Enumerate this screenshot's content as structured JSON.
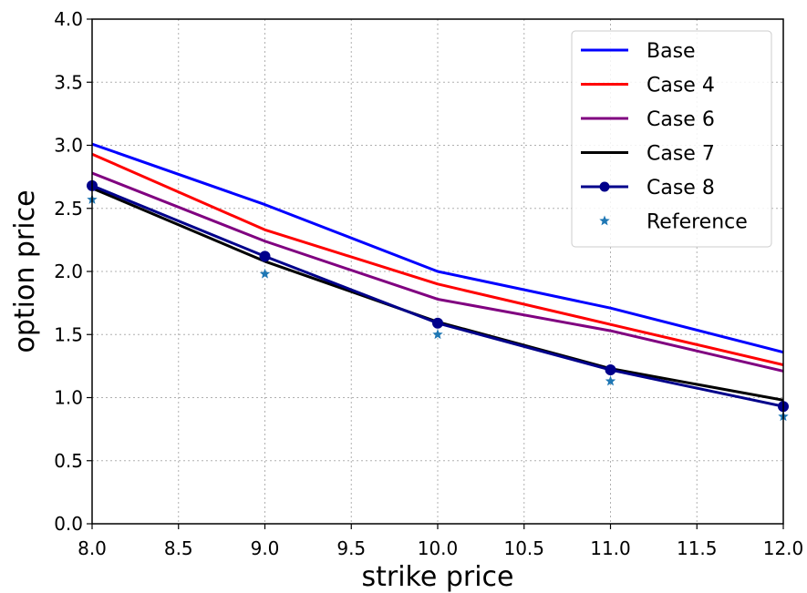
{
  "chart_data": {
    "type": "line",
    "xlabel": "strike price",
    "ylabel": "option price",
    "xlim": [
      8.0,
      12.0
    ],
    "ylim": [
      0.0,
      4.0
    ],
    "xticks": [
      "8.0",
      "8.5",
      "9.0",
      "9.5",
      "10.0",
      "10.5",
      "11.0",
      "11.5",
      "12.0"
    ],
    "yticks": [
      "0.0",
      "0.5",
      "1.0",
      "1.5",
      "2.0",
      "2.5",
      "3.0",
      "3.5",
      "4.0"
    ],
    "grid": true,
    "legend_position": "top-right",
    "x": [
      8,
      9,
      10,
      11,
      12
    ],
    "series": [
      {
        "name": "Base",
        "color": "#0000ff",
        "style": "line",
        "values": [
          3.01,
          2.53,
          2.0,
          1.71,
          1.36
        ]
      },
      {
        "name": "Case 4",
        "color": "#ff0000",
        "style": "line",
        "values": [
          2.93,
          2.33,
          1.9,
          1.58,
          1.26
        ]
      },
      {
        "name": "Case 6",
        "color": "#800080",
        "style": "line",
        "values": [
          2.78,
          2.24,
          1.78,
          1.53,
          1.21
        ]
      },
      {
        "name": "Case 7",
        "color": "#000000",
        "style": "line",
        "values": [
          2.66,
          2.08,
          1.6,
          1.23,
          0.98
        ]
      },
      {
        "name": "Case 8",
        "color": "#00008b",
        "style": "line-marker",
        "values": [
          2.68,
          2.12,
          1.59,
          1.22,
          0.93
        ]
      },
      {
        "name": "Reference",
        "color": "#1f77b4",
        "style": "star",
        "values": [
          2.57,
          1.98,
          1.5,
          1.13,
          0.85
        ]
      }
    ]
  }
}
